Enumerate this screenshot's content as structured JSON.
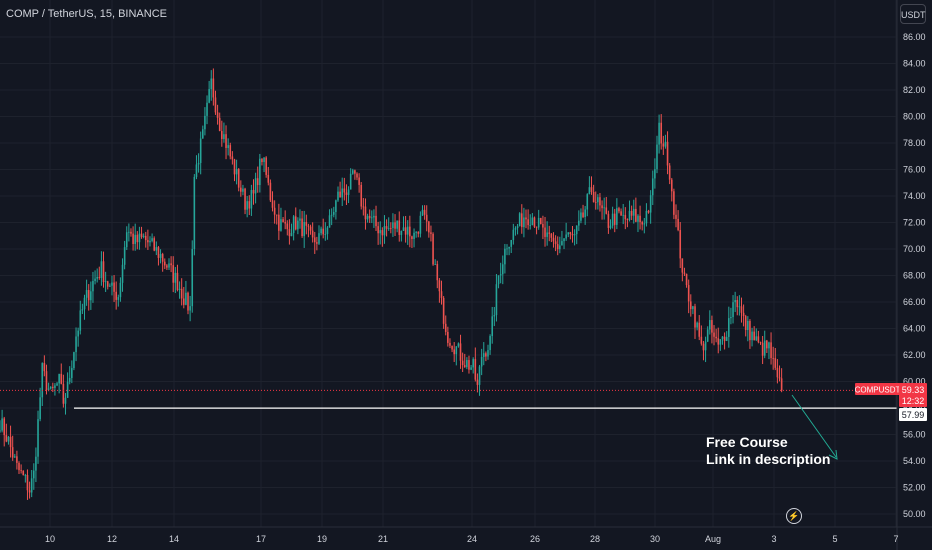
{
  "header": {
    "symbol_title": "COMP / TetherUS, 15, BINANCE",
    "currency_button": "USDT"
  },
  "annotation": {
    "line1": "Free Course",
    "line2": "Link in description"
  },
  "price_labels": {
    "symbol_tag": "COMPUSDT",
    "last_price": "59.33",
    "countdown": "12:32",
    "level_price": "57.99"
  },
  "colors": {
    "background": "#131722",
    "up": "#26a69a",
    "down": "#ef5350",
    "grid": "#1e222d",
    "axis_text": "#d1d4dc",
    "last_price": "#f23645",
    "level_line": "#ffffff",
    "arrow": "#22ab94"
  },
  "icons": {
    "logo": "tradingview-bolt-icon"
  },
  "chart_data": {
    "type": "candlestick",
    "ylim": [
      49.5,
      86.8
    ],
    "y_ticks": [
      "50.00",
      "52.00",
      "54.00",
      "56.00",
      "58.00",
      "60.00",
      "62.00",
      "64.00",
      "66.00",
      "68.00",
      "70.00",
      "72.00",
      "74.00",
      "76.00",
      "78.00",
      "80.00",
      "82.00",
      "84.00",
      "86.00"
    ],
    "x_ticks": [
      "10",
      "12",
      "14",
      "17",
      "19",
      "21",
      "24",
      "26",
      "28",
      "30",
      "Aug",
      "3",
      "5",
      "7"
    ],
    "last_price": 59.33,
    "horizontal_level": 57.99,
    "price_path": [
      [
        0,
        57.0
      ],
      [
        1,
        55.5
      ],
      [
        2,
        53.5
      ],
      [
        3,
        52.5
      ],
      [
        3.5,
        51.8
      ],
      [
        4,
        53.0
      ],
      [
        5,
        60.8
      ],
      [
        6,
        59.0
      ],
      [
        7,
        60.0
      ],
      [
        7.5,
        58.5
      ],
      [
        8,
        59.5
      ],
      [
        9,
        63.5
      ],
      [
        10,
        66.0
      ],
      [
        11,
        67.5
      ],
      [
        12,
        68.5
      ],
      [
        13,
        67.0
      ],
      [
        14,
        66.5
      ],
      [
        15,
        71.5
      ],
      [
        16,
        70.5
      ],
      [
        17,
        70.8
      ],
      [
        18,
        70.2
      ],
      [
        19,
        69.5
      ],
      [
        20,
        68.5
      ],
      [
        21,
        67.5
      ],
      [
        22,
        66.0
      ],
      [
        22.5,
        65.5
      ],
      [
        23,
        75.5
      ],
      [
        24,
        78.5
      ],
      [
        25,
        82.5
      ],
      [
        26,
        79.5
      ],
      [
        27,
        77.5
      ],
      [
        28,
        75.5
      ],
      [
        29,
        73.5
      ],
      [
        30,
        74.0
      ],
      [
        31,
        77.0
      ],
      [
        32,
        74.0
      ],
      [
        33,
        72.0
      ],
      [
        34,
        71.5
      ],
      [
        35,
        72.0
      ],
      [
        36,
        71.5
      ],
      [
        37,
        70.5
      ],
      [
        38,
        71.0
      ],
      [
        39,
        72.0
      ],
      [
        40,
        74.0
      ],
      [
        41,
        74.5
      ],
      [
        42,
        75.5
      ],
      [
        43,
        73.0
      ],
      [
        44,
        72.0
      ],
      [
        45,
        71.5
      ],
      [
        46,
        71.5
      ],
      [
        47,
        71.8
      ],
      [
        48,
        71.5
      ],
      [
        49,
        71.0
      ],
      [
        50,
        72.5
      ],
      [
        51,
        70.5
      ],
      [
        52,
        66.5
      ],
      [
        53,
        63.5
      ],
      [
        54,
        62.5
      ],
      [
        55,
        61.5
      ],
      [
        56,
        61.0
      ],
      [
        56.5,
        59.5
      ],
      [
        57,
        62.0
      ],
      [
        58,
        63.0
      ],
      [
        59,
        68.0
      ],
      [
        60,
        70.5
      ],
      [
        61,
        71.5
      ],
      [
        62,
        72.5
      ],
      [
        63,
        72.5
      ],
      [
        64,
        71.5
      ],
      [
        65,
        70.5
      ],
      [
        66,
        70.2
      ],
      [
        67,
        71.0
      ],
      [
        68,
        70.8
      ],
      [
        69,
        72.5
      ],
      [
        70,
        74.5
      ],
      [
        71,
        73.0
      ],
      [
        72,
        72.0
      ],
      [
        73,
        72.5
      ],
      [
        74,
        72.2
      ],
      [
        75,
        72.5
      ],
      [
        76,
        72.0
      ],
      [
        77,
        73.5
      ],
      [
        78,
        79.0
      ],
      [
        79,
        77.0
      ],
      [
        80,
        72.0
      ],
      [
        81,
        67.5
      ],
      [
        82,
        65.5
      ],
      [
        83,
        62.5
      ],
      [
        84,
        64.0
      ],
      [
        85,
        62.5
      ],
      [
        86,
        64.0
      ],
      [
        87,
        66.5
      ],
      [
        88,
        64.5
      ],
      [
        89,
        63.5
      ],
      [
        90,
        62.5
      ],
      [
        91,
        62.5
      ],
      [
        92,
        60.0
      ],
      [
        92.5,
        59.33
      ]
    ]
  }
}
